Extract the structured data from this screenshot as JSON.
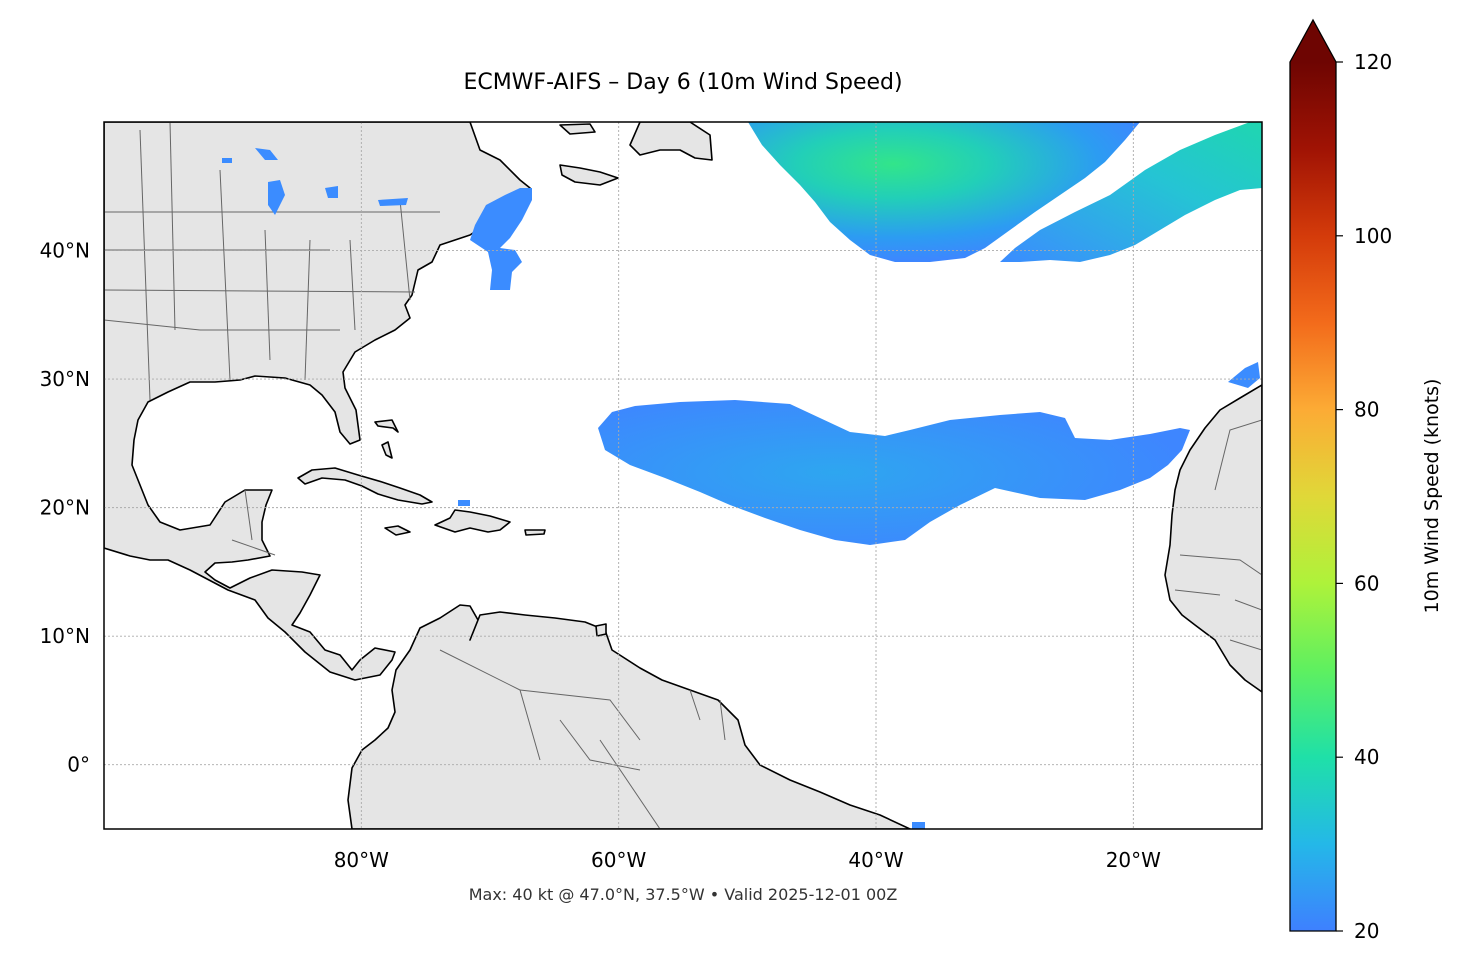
{
  "title": "ECMWF-AIFS – Day 6 (10m Wind Speed)",
  "footer": "Max: 40 kt @ 47.0°N, 37.5°W • Valid 2025-12-01 00Z",
  "map": {
    "extent_lon": [
      -100,
      -10
    ],
    "extent_lat": [
      -5,
      50
    ],
    "lon_ticks": [
      {
        "value": -80,
        "label": "80°W"
      },
      {
        "value": -60,
        "label": "60°W"
      },
      {
        "value": -40,
        "label": "40°W"
      },
      {
        "value": -20,
        "label": "20°W"
      }
    ],
    "lat_ticks": [
      {
        "value": 40,
        "label": "40°N"
      },
      {
        "value": 30,
        "label": "30°N"
      },
      {
        "value": 20,
        "label": "20°N"
      },
      {
        "value": 10,
        "label": "10°N"
      },
      {
        "value": 0,
        "label": "0°"
      }
    ],
    "gridlines": true,
    "land_color": "#e5e5e5",
    "ocean_color": "#ffffff"
  },
  "colorbar": {
    "label": "10m Wind Speed (knots)",
    "min": 20,
    "max": 120,
    "extend": "max",
    "ticks": [
      {
        "value": 20,
        "label": "20"
      },
      {
        "value": 40,
        "label": "40"
      },
      {
        "value": 60,
        "label": "60"
      },
      {
        "value": 80,
        "label": "80"
      },
      {
        "value": 100,
        "label": "100"
      },
      {
        "value": 120,
        "label": "120"
      }
    ],
    "colormap": [
      "#3e80ff",
      "#24b8e8",
      "#1fe0a8",
      "#5ef060",
      "#aef23a",
      "#e0d838",
      "#fcab35",
      "#f36b1b",
      "#d43b0a",
      "#a01304",
      "#6e0502"
    ]
  },
  "wind_regions": [
    {
      "name": "north-atlantic-jet",
      "speed_max_kt": 40
    },
    {
      "name": "subtropical-trade-band",
      "speed_max_kt": 27
    },
    {
      "name": "northeast-trade-band",
      "speed_max_kt": 34
    },
    {
      "name": "us-northeast-coast",
      "speed_max_kt": 22
    }
  ]
}
